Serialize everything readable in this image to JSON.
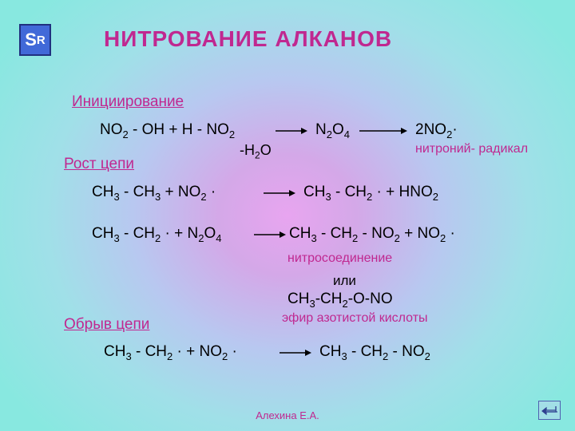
{
  "badge": {
    "main": "S",
    "sub": "R"
  },
  "title": "НИТРОВАНИЕ  АЛКАНОВ",
  "sections": {
    "initiation": "Инициирование",
    "propagation": "Рост цепи",
    "termination": "Обрыв цепи"
  },
  "colors": {
    "accent": "#c02890",
    "badge_bg": "#4169d8",
    "badge_border": "#203080",
    "text": "#000000"
  },
  "equations": {
    "eq1_left": "NO<sub>2</sub> - OH + H - NO<sub>2</sub>",
    "eq1_mid": "N<sub>2</sub>O<sub>4</sub>",
    "eq1_right": "2NO<sub>2</sub>·",
    "eq1_below": "-H<sub>2</sub>O",
    "eq2_left": "CH<sub>3</sub> - CH<sub>3</sub> + NO<sub>2</sub> ·",
    "eq2_right": "CH<sub>3</sub> - CH<sub>2</sub> · + HNO<sub>2</sub>",
    "eq3_left": "CH<sub>3</sub> - CH<sub>2</sub> · + N<sub>2</sub>O<sub>4</sub>",
    "eq3_right": "CH<sub>3</sub> - CH<sub>2</sub> - NO<sub>2</sub> + NO<sub>2</sub> ·",
    "eq4_left": "CH<sub>3</sub> - CH<sub>2</sub> · + NO<sub>2</sub> ·",
    "eq4_right": "CH<sub>3</sub> - CH<sub>2</sub> - NO<sub>2</sub>"
  },
  "notes": {
    "nitronium": "нитроний-\nрадикал",
    "nitrocompound": "нитросоединение",
    "or": "или",
    "ester_formula": "CH<sub>3</sub>-CH<sub>2</sub>-O-NO",
    "ester_name": "эфир азотистой кислоты"
  },
  "footer": "Алехина Е.А."
}
